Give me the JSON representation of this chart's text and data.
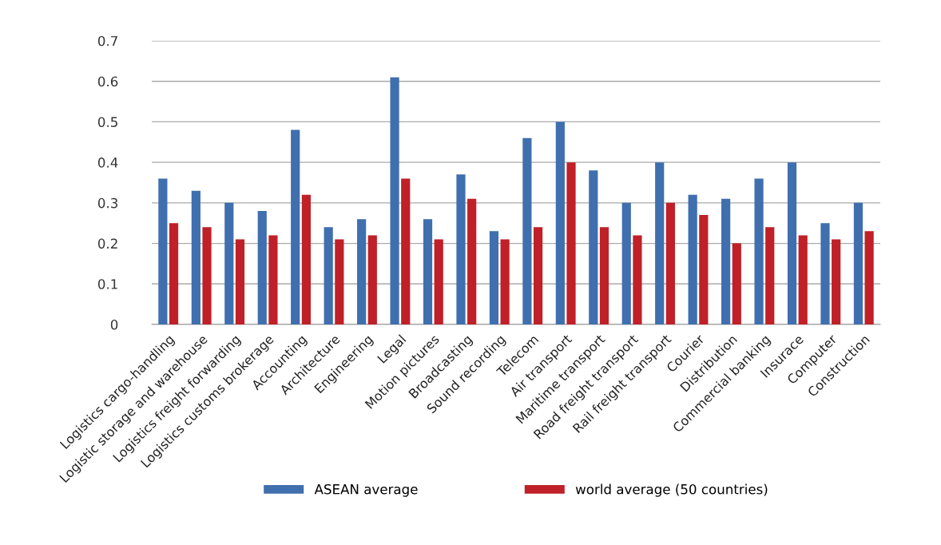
{
  "chart_data": {
    "type": "bar",
    "categories": [
      "Logistics cargo-handling",
      "Logistic storage and warehouse",
      "Logistics freight forwarding",
      "Logistics customs brokerage",
      "Accounting",
      "Architecture",
      "Engineering",
      "Legal",
      "Motion pictures",
      "Broadcasting",
      "Sound recording",
      "Telecom",
      "Air transport",
      "Maritime transport",
      "Road freight transport",
      "Rail freight transport",
      "Courier",
      "Distribution",
      "Commercial banking",
      "Insurace",
      "Computer",
      "Construction"
    ],
    "series": [
      {
        "name": "ASEAN average",
        "color": "#3f6fae",
        "values": [
          0.36,
          0.33,
          0.3,
          0.28,
          0.48,
          0.24,
          0.26,
          0.61,
          0.26,
          0.37,
          0.23,
          0.46,
          0.5,
          0.38,
          0.3,
          0.4,
          0.32,
          0.31,
          0.36,
          0.4,
          0.25,
          0.3
        ]
      },
      {
        "name": "world average (50 countries)",
        "color": "#c02027",
        "values": [
          0.25,
          0.24,
          0.21,
          0.22,
          0.32,
          0.21,
          0.22,
          0.36,
          0.21,
          0.31,
          0.21,
          0.24,
          0.4,
          0.24,
          0.22,
          0.3,
          0.27,
          0.2,
          0.24,
          0.22,
          0.21,
          0.23
        ]
      }
    ],
    "ylim": [
      0,
      0.7
    ],
    "yticks": [
      0,
      0.1,
      0.2,
      0.3,
      0.4,
      0.5,
      0.6,
      0.7
    ],
    "grid": "y",
    "legend": "bottom"
  }
}
